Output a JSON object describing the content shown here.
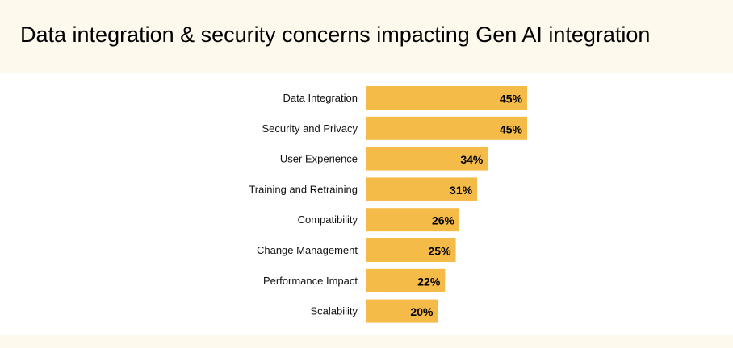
{
  "chart_data": {
    "type": "bar",
    "orientation": "horizontal",
    "title": "Data integration & security concerns impacting Gen AI integration",
    "categories": [
      "Data Integration",
      "Security and Privacy",
      "User Experience",
      "Training and Retraining",
      "Compatibility",
      "Change Management",
      "Performance Impact",
      "Scalability"
    ],
    "values": [
      45,
      45,
      34,
      31,
      26,
      25,
      22,
      20
    ],
    "value_labels": [
      "45%",
      "45%",
      "34%",
      "31%",
      "26%",
      "25%",
      "22%",
      "20%"
    ],
    "unit": "%",
    "xlim": [
      0,
      45
    ],
    "xlabel": "",
    "ylabel": "",
    "grid": false,
    "legend": "none",
    "bar_color": "#f4bb48",
    "label_color": "#000000"
  },
  "colors": {
    "header_background": "#fdf9ec",
    "panel_background": "#ffffff"
  }
}
